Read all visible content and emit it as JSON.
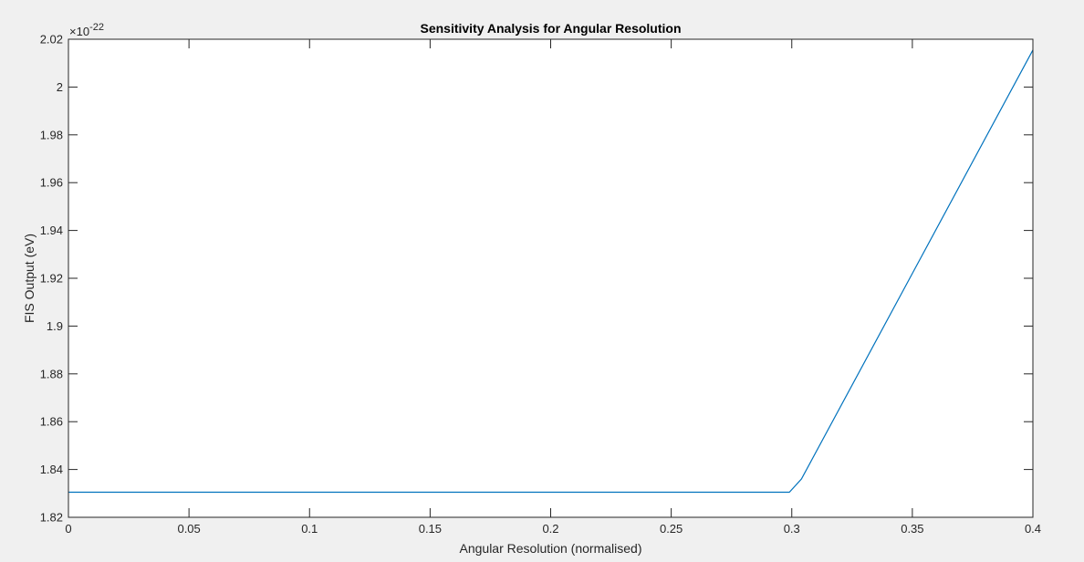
{
  "chart_data": {
    "type": "line",
    "title": "Sensitivity Analysis for Angular Resolution",
    "xlabel": "Angular Resolution (normalised)",
    "ylabel": "FIS Output (eV)",
    "y_exponent_prefix": "×10",
    "y_exponent_power": "-22",
    "xlim": [
      0,
      0.4
    ],
    "ylim": [
      1.82,
      2.02
    ],
    "grid": false,
    "x_ticks": [
      "0",
      "0.05",
      "0.1",
      "0.15",
      "0.2",
      "0.25",
      "0.3",
      "0.35",
      "0.4"
    ],
    "x_tick_values": [
      0,
      0.05,
      0.1,
      0.15,
      0.2,
      0.25,
      0.3,
      0.35,
      0.4
    ],
    "y_ticks": [
      "1.82",
      "1.84",
      "1.86",
      "1.88",
      "1.9",
      "1.92",
      "1.94",
      "1.96",
      "1.98",
      "2",
      "2.02"
    ],
    "y_tick_values": [
      1.82,
      1.84,
      1.86,
      1.88,
      1.9,
      1.92,
      1.94,
      1.96,
      1.98,
      2.0,
      2.02
    ],
    "series": [
      {
        "color": "#0072bd",
        "x": [
          0,
          0.05,
          0.1,
          0.15,
          0.2,
          0.25,
          0.299,
          0.304,
          0.35,
          0.4
        ],
        "y": [
          1.8305,
          1.8305,
          1.8305,
          1.8305,
          1.8305,
          1.8305,
          1.8305,
          1.836,
          1.922,
          2.0155
        ]
      }
    ]
  }
}
